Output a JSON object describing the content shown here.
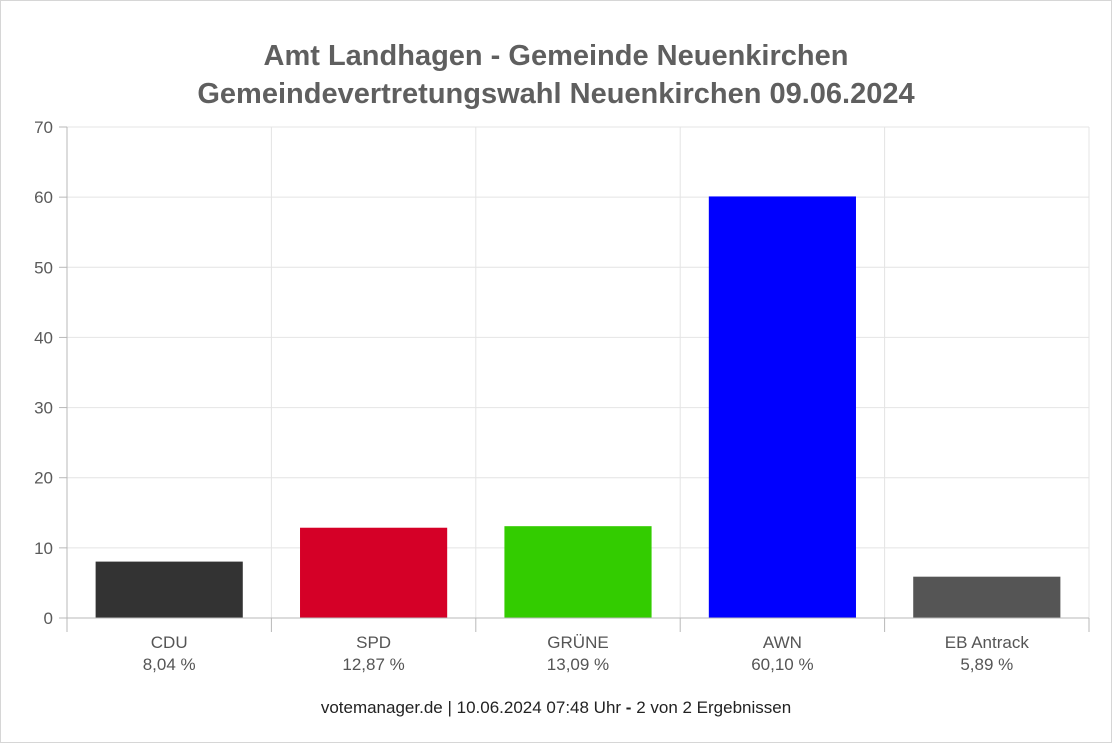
{
  "chart_data": {
    "type": "bar",
    "title_line1": "Amt Landhagen - Gemeinde Neuenkirchen",
    "title_line2": "Gemeindevertretungswahl Neuenkirchen 09.06.2024",
    "categories": [
      "CDU",
      "SPD",
      "GRÜNE",
      "AWN",
      "EB Antrack"
    ],
    "value_labels": [
      "8,04 %",
      "12,87 %",
      "13,09 %",
      "60,10 %",
      "5,89 %"
    ],
    "values": [
      8.04,
      12.87,
      13.09,
      60.1,
      5.89
    ],
    "colors": [
      "#333333",
      "#d50027",
      "#33cc00",
      "#0000ff",
      "#555555"
    ],
    "ylim": [
      0,
      70
    ],
    "yticks": [
      0,
      10,
      20,
      30,
      40,
      50,
      60,
      70
    ],
    "grid": true,
    "xlabel": "",
    "ylabel": ""
  },
  "footer": {
    "source": "votemanager.de",
    "separator": " | ",
    "timestamp": "10.06.2024 07:48 Uhr",
    "dash": " - ",
    "results": "2 von 2 Ergebnissen"
  }
}
